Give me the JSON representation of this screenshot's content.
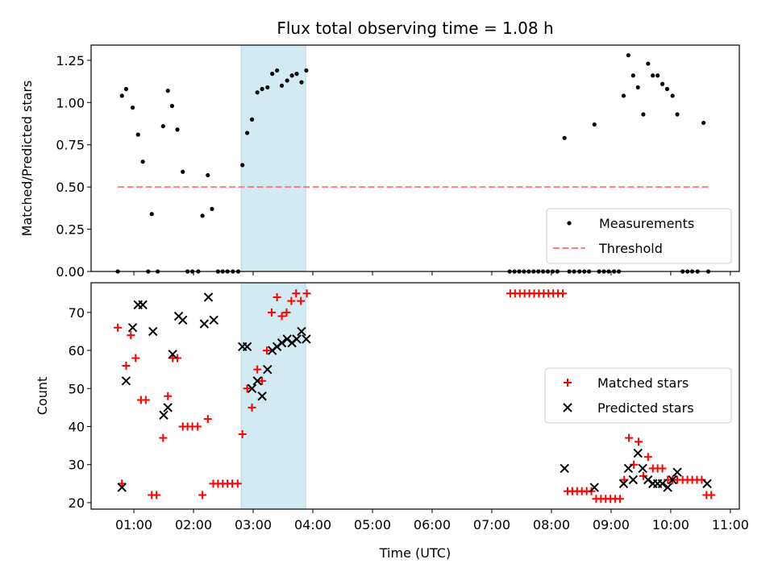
{
  "title": "Flux total observing time = 1.08 h",
  "xlabel": "Time (UTC)",
  "x_ticks": [
    "01:00",
    "02:00",
    "03:00",
    "04:00",
    "05:00",
    "06:00",
    "07:00",
    "08:00",
    "09:00",
    "10:00",
    "11:00"
  ],
  "colors": {
    "highlight": "#add8e6",
    "threshold": "#ff7f7f",
    "matched": "#ff0000",
    "predicted": "#000000",
    "measurement": "#000000"
  },
  "chart_data": [
    {
      "type": "scatter",
      "ylabel": "Matched/Predicted stars",
      "xlim": [
        0.283,
        11.15
      ],
      "ylim": [
        0,
        1.34
      ],
      "y_ticks": [
        "0.00",
        "0.25",
        "0.50",
        "0.75",
        "1.00",
        "1.25"
      ],
      "highlight_span": [
        2.8,
        3.88
      ],
      "legend_position": "lower-right",
      "legend": [
        "Measurements",
        "Threshold"
      ],
      "threshold": {
        "x": [
          0.73,
          10.63
        ],
        "y": 0.5
      },
      "series": [
        {
          "name": "Measurements",
          "points": [
            [
              0.73,
              0.0
            ],
            [
              0.8,
              1.04
            ],
            [
              0.87,
              1.08
            ],
            [
              0.98,
              0.97
            ],
            [
              1.07,
              0.81
            ],
            [
              1.15,
              0.65
            ],
            [
              1.24,
              0.0
            ],
            [
              1.3,
              0.34
            ],
            [
              1.4,
              0.0
            ],
            [
              1.49,
              0.86
            ],
            [
              1.57,
              1.07
            ],
            [
              1.64,
              0.98
            ],
            [
              1.73,
              0.84
            ],
            [
              1.82,
              0.59
            ],
            [
              1.9,
              0.0
            ],
            [
              1.98,
              0.0
            ],
            [
              2.08,
              0.0
            ],
            [
              2.15,
              0.33
            ],
            [
              2.24,
              0.57
            ],
            [
              2.31,
              0.37
            ],
            [
              2.41,
              0.0
            ],
            [
              2.49,
              0.0
            ],
            [
              2.57,
              0.0
            ],
            [
              2.66,
              0.0
            ],
            [
              2.75,
              0.0
            ],
            [
              2.82,
              0.63
            ],
            [
              2.9,
              0.82
            ],
            [
              2.98,
              0.9
            ],
            [
              3.07,
              1.06
            ],
            [
              3.15,
              1.08
            ],
            [
              3.24,
              1.09
            ],
            [
              3.32,
              1.17
            ],
            [
              3.4,
              1.19
            ],
            [
              3.48,
              1.1
            ],
            [
              3.57,
              1.13
            ],
            [
              3.65,
              1.16
            ],
            [
              3.73,
              1.17
            ],
            [
              3.81,
              1.12
            ],
            [
              3.89,
              1.19
            ],
            [
              7.3,
              0.0
            ],
            [
              7.38,
              0.0
            ],
            [
              7.46,
              0.0
            ],
            [
              7.54,
              0.0
            ],
            [
              7.62,
              0.0
            ],
            [
              7.7,
              0.0
            ],
            [
              7.78,
              0.0
            ],
            [
              7.86,
              0.0
            ],
            [
              7.94,
              0.0
            ],
            [
              8.02,
              0.0
            ],
            [
              8.1,
              0.0
            ],
            [
              8.22,
              0.79
            ],
            [
              8.3,
              0.0
            ],
            [
              8.38,
              0.0
            ],
            [
              8.47,
              0.0
            ],
            [
              8.55,
              0.0
            ],
            [
              8.63,
              0.0
            ],
            [
              8.72,
              0.87
            ],
            [
              8.8,
              0.0
            ],
            [
              8.88,
              0.0
            ],
            [
              8.96,
              0.0
            ],
            [
              9.05,
              0.0
            ],
            [
              9.13,
              0.0
            ],
            [
              9.21,
              1.04
            ],
            [
              9.29,
              1.28
            ],
            [
              9.37,
              1.16
            ],
            [
              9.45,
              1.09
            ],
            [
              9.54,
              0.93
            ],
            [
              9.62,
              1.23
            ],
            [
              9.7,
              1.16
            ],
            [
              9.78,
              1.16
            ],
            [
              9.86,
              1.11
            ],
            [
              9.94,
              1.08
            ],
            [
              10.03,
              1.04
            ],
            [
              10.11,
              0.93
            ],
            [
              10.2,
              0.0
            ],
            [
              10.28,
              0.0
            ],
            [
              10.36,
              0.0
            ],
            [
              10.45,
              0.0
            ],
            [
              10.55,
              0.88
            ],
            [
              10.63,
              0.0
            ]
          ]
        }
      ]
    },
    {
      "type": "scatter",
      "ylabel": "Count",
      "xlim": [
        0.283,
        11.15
      ],
      "ylim": [
        18.3,
        77.8
      ],
      "y_ticks": [
        "20",
        "30",
        "40",
        "50",
        "60",
        "70"
      ],
      "highlight_span": [
        2.8,
        3.88
      ],
      "legend_position": "center-right",
      "legend": [
        "Matched stars",
        "Predicted stars"
      ],
      "series": [
        {
          "name": "Matched stars",
          "points": [
            [
              0.73,
              66
            ],
            [
              0.8,
              25
            ],
            [
              0.87,
              56
            ],
            [
              0.95,
              64
            ],
            [
              1.03,
              58
            ],
            [
              1.12,
              47
            ],
            [
              1.2,
              47
            ],
            [
              1.3,
              22
            ],
            [
              1.38,
              22
            ],
            [
              1.49,
              37
            ],
            [
              1.57,
              48
            ],
            [
              1.65,
              58
            ],
            [
              1.73,
              58
            ],
            [
              1.82,
              40
            ],
            [
              1.9,
              40
            ],
            [
              1.98,
              40
            ],
            [
              2.07,
              40
            ],
            [
              2.15,
              22
            ],
            [
              2.24,
              42
            ],
            [
              2.33,
              25
            ],
            [
              2.41,
              25
            ],
            [
              2.49,
              25
            ],
            [
              2.57,
              25
            ],
            [
              2.65,
              25
            ],
            [
              2.74,
              25
            ],
            [
              2.82,
              38
            ],
            [
              2.9,
              50
            ],
            [
              2.98,
              45
            ],
            [
              3.07,
              55
            ],
            [
              3.15,
              52
            ],
            [
              3.23,
              60
            ],
            [
              3.31,
              70
            ],
            [
              3.4,
              74
            ],
            [
              3.48,
              69
            ],
            [
              3.56,
              70
            ],
            [
              3.64,
              73
            ],
            [
              3.72,
              75
            ],
            [
              3.8,
              73
            ],
            [
              3.9,
              75
            ],
            [
              7.31,
              75
            ],
            [
              7.39,
              75
            ],
            [
              7.47,
              75
            ],
            [
              7.55,
              75
            ],
            [
              7.63,
              75
            ],
            [
              7.71,
              75
            ],
            [
              7.79,
              75
            ],
            [
              7.87,
              75
            ],
            [
              7.95,
              75
            ],
            [
              8.03,
              75
            ],
            [
              8.11,
              75
            ],
            [
              8.19,
              75
            ],
            [
              8.27,
              23
            ],
            [
              8.35,
              23
            ],
            [
              8.43,
              23
            ],
            [
              8.51,
              23
            ],
            [
              8.59,
              23
            ],
            [
              8.67,
              23
            ],
            [
              8.75,
              21
            ],
            [
              8.83,
              21
            ],
            [
              8.91,
              21
            ],
            [
              8.99,
              21
            ],
            [
              9.07,
              21
            ],
            [
              9.15,
              21
            ],
            [
              9.22,
              26
            ],
            [
              9.3,
              37
            ],
            [
              9.38,
              30
            ],
            [
              9.46,
              36
            ],
            [
              9.54,
              27
            ],
            [
              9.62,
              32
            ],
            [
              9.7,
              29
            ],
            [
              9.78,
              29
            ],
            [
              9.86,
              29
            ],
            [
              9.95,
              26
            ],
            [
              10.03,
              26
            ],
            [
              10.11,
              26
            ],
            [
              10.2,
              26
            ],
            [
              10.28,
              26
            ],
            [
              10.36,
              26
            ],
            [
              10.44,
              26
            ],
            [
              10.52,
              26
            ],
            [
              10.6,
              22
            ],
            [
              10.68,
              22
            ]
          ]
        },
        {
          "name": "Predicted stars",
          "points": [
            [
              0.8,
              24
            ],
            [
              0.87,
              52
            ],
            [
              0.98,
              66
            ],
            [
              1.07,
              72
            ],
            [
              1.15,
              72
            ],
            [
              1.32,
              65
            ],
            [
              1.5,
              43
            ],
            [
              1.57,
              45
            ],
            [
              1.65,
              59
            ],
            [
              1.75,
              69
            ],
            [
              1.82,
              68
            ],
            [
              2.18,
              67
            ],
            [
              2.25,
              74
            ],
            [
              2.34,
              68
            ],
            [
              2.82,
              61
            ],
            [
              2.9,
              61
            ],
            [
              2.98,
              50
            ],
            [
              3.07,
              52
            ],
            [
              3.15,
              48
            ],
            [
              3.24,
              55
            ],
            [
              3.32,
              60
            ],
            [
              3.4,
              61
            ],
            [
              3.48,
              62
            ],
            [
              3.57,
              63
            ],
            [
              3.65,
              62
            ],
            [
              3.73,
              63
            ],
            [
              3.81,
              65
            ],
            [
              3.89,
              63
            ],
            [
              8.22,
              29
            ],
            [
              8.72,
              24
            ],
            [
              9.21,
              25
            ],
            [
              9.29,
              29
            ],
            [
              9.37,
              26
            ],
            [
              9.45,
              33
            ],
            [
              9.53,
              29
            ],
            [
              9.62,
              26
            ],
            [
              9.7,
              25
            ],
            [
              9.78,
              25
            ],
            [
              9.86,
              25
            ],
            [
              9.95,
              24
            ],
            [
              10.03,
              26
            ],
            [
              10.11,
              28
            ],
            [
              10.61,
              25
            ]
          ]
        }
      ]
    }
  ]
}
